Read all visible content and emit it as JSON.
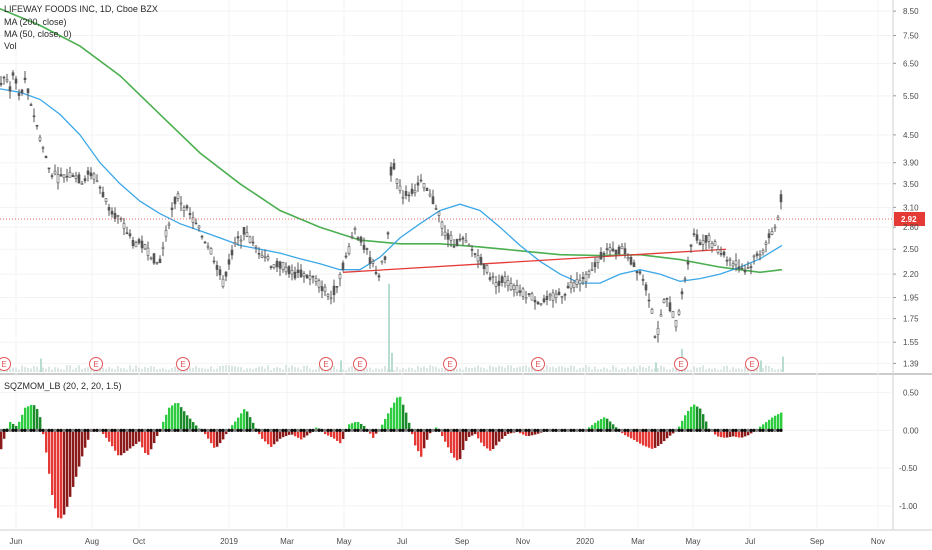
{
  "chart_data": [
    {
      "type": "candlestick",
      "legend": {
        "title": "LIFEWAY FOODS INC, 1D, Cboe BZX",
        "ma200": "MA (200, close)",
        "ma50": "MA (50, close, 0)",
        "vol": "Vol"
      },
      "x_ticks": [
        "Jun",
        "Aug",
        "Oct",
        "2019",
        "Mar",
        "May",
        "Jul",
        "Sep",
        "Nov",
        "2020",
        "Mar",
        "May",
        "Jul",
        "Sep",
        "Nov"
      ],
      "y_ticks": [
        "8.50",
        "7.50",
        "6.50",
        "5.50",
        "4.50",
        "3.90",
        "3.50",
        "3.10",
        "2.80",
        "2.50",
        "2.20",
        "1.95",
        "1.75",
        "1.55",
        "1.39"
      ],
      "ylim": [
        1.33,
        9.0
      ],
      "y_scale": "log",
      "last_price": "2.92",
      "price_path": [
        [
          0,
          5.8
        ],
        [
          4,
          6.2
        ],
        [
          8,
          5.6
        ],
        [
          13,
          6.3
        ],
        [
          18,
          5.5
        ],
        [
          24,
          5.9
        ],
        [
          30,
          5.3
        ],
        [
          36,
          4.7
        ],
        [
          42,
          4.2
        ],
        [
          48,
          3.8
        ],
        [
          56,
          3.6
        ],
        [
          64,
          3.65
        ],
        [
          72,
          3.7
        ],
        [
          80,
          3.55
        ],
        [
          88,
          3.7
        ],
        [
          95,
          3.6
        ],
        [
          105,
          3.2
        ],
        [
          114,
          3.0
        ],
        [
          123,
          2.8
        ],
        [
          132,
          2.6
        ],
        [
          141,
          2.55
        ],
        [
          150,
          2.45
        ],
        [
          157,
          2.3
        ],
        [
          162,
          2.5
        ],
        [
          168,
          2.9
        ],
        [
          176,
          3.3
        ],
        [
          184,
          3.1
        ],
        [
          192,
          2.9
        ],
        [
          200,
          2.7
        ],
        [
          208,
          2.55
        ],
        [
          216,
          2.3
        ],
        [
          222,
          2.1
        ],
        [
          228,
          2.35
        ],
        [
          236,
          2.6
        ],
        [
          244,
          2.75
        ],
        [
          252,
          2.55
        ],
        [
          262,
          2.45
        ],
        [
          272,
          2.3
        ],
        [
          282,
          2.3
        ],
        [
          292,
          2.2
        ],
        [
          302,
          2.2
        ],
        [
          312,
          2.15
        ],
        [
          322,
          2.05
        ],
        [
          330,
          1.95
        ],
        [
          336,
          2.1
        ],
        [
          342,
          2.3
        ],
        [
          348,
          2.5
        ],
        [
          354,
          2.8
        ],
        [
          360,
          2.6
        ],
        [
          366,
          2.45
        ],
        [
          372,
          2.3
        ],
        [
          378,
          2.2
        ],
        [
          384,
          2.4
        ],
        [
          388,
          2.8
        ],
        [
          391,
          4.2
        ],
        [
          394,
          3.7
        ],
        [
          398,
          3.4
        ],
        [
          404,
          3.3
        ],
        [
          412,
          3.4
        ],
        [
          420,
          3.5
        ],
        [
          428,
          3.3
        ],
        [
          436,
          3.1
        ],
        [
          444,
          2.7
        ],
        [
          452,
          2.6
        ],
        [
          462,
          2.6
        ],
        [
          470,
          2.5
        ],
        [
          478,
          2.4
        ],
        [
          486,
          2.25
        ],
        [
          494,
          2.1
        ],
        [
          502,
          2.15
        ],
        [
          512,
          2.05
        ],
        [
          522,
          2.0
        ],
        [
          532,
          1.95
        ],
        [
          542,
          1.9
        ],
        [
          552,
          1.95
        ],
        [
          562,
          2.0
        ],
        [
          572,
          2.1
        ],
        [
          582,
          2.15
        ],
        [
          590,
          2.2
        ],
        [
          598,
          2.4
        ],
        [
          604,
          2.5
        ],
        [
          612,
          2.45
        ],
        [
          620,
          2.5
        ],
        [
          626,
          2.45
        ],
        [
          632,
          2.3
        ],
        [
          638,
          2.25
        ],
        [
          644,
          2.1
        ],
        [
          650,
          1.9
        ],
        [
          655,
          1.55
        ],
        [
          660,
          1.75
        ],
        [
          664,
          1.95
        ],
        [
          670,
          1.85
        ],
        [
          675,
          1.7
        ],
        [
          680,
          1.9
        ],
        [
          686,
          2.3
        ],
        [
          692,
          2.7
        ],
        [
          698,
          2.6
        ],
        [
          706,
          2.65
        ],
        [
          714,
          2.55
        ],
        [
          722,
          2.45
        ],
        [
          730,
          2.35
        ],
        [
          738,
          2.3
        ],
        [
          746,
          2.25
        ],
        [
          754,
          2.4
        ],
        [
          762,
          2.5
        ],
        [
          770,
          2.7
        ],
        [
          776,
          2.85
        ],
        [
          782,
          3.45
        ]
      ],
      "ma50_path": [
        [
          0,
          5.7
        ],
        [
          20,
          5.6
        ],
        [
          40,
          5.4
        ],
        [
          60,
          5.0
        ],
        [
          80,
          4.5
        ],
        [
          100,
          3.9
        ],
        [
          120,
          3.5
        ],
        [
          140,
          3.2
        ],
        [
          160,
          3.0
        ],
        [
          180,
          2.85
        ],
        [
          200,
          2.75
        ],
        [
          220,
          2.65
        ],
        [
          240,
          2.55
        ],
        [
          260,
          2.5
        ],
        [
          280,
          2.45
        ],
        [
          300,
          2.38
        ],
        [
          320,
          2.32
        ],
        [
          340,
          2.25
        ],
        [
          360,
          2.25
        ],
        [
          380,
          2.4
        ],
        [
          400,
          2.65
        ],
        [
          420,
          2.85
        ],
        [
          440,
          3.05
        ],
        [
          460,
          3.15
        ],
        [
          480,
          3.05
        ],
        [
          500,
          2.8
        ],
        [
          520,
          2.55
        ],
        [
          540,
          2.35
        ],
        [
          560,
          2.2
        ],
        [
          580,
          2.1
        ],
        [
          600,
          2.1
        ],
        [
          620,
          2.2
        ],
        [
          640,
          2.25
        ],
        [
          660,
          2.2
        ],
        [
          680,
          2.12
        ],
        [
          700,
          2.15
        ],
        [
          720,
          2.2
        ],
        [
          740,
          2.28
        ],
        [
          760,
          2.38
        ],
        [
          782,
          2.55
        ]
      ],
      "ma200_path": [
        [
          0,
          8.6
        ],
        [
          40,
          7.9
        ],
        [
          80,
          7.1
        ],
        [
          120,
          6.1
        ],
        [
          160,
          5.0
        ],
        [
          200,
          4.1
        ],
        [
          240,
          3.5
        ],
        [
          280,
          3.05
        ],
        [
          320,
          2.8
        ],
        [
          360,
          2.62
        ],
        [
          400,
          2.57
        ],
        [
          440,
          2.57
        ],
        [
          480,
          2.53
        ],
        [
          520,
          2.48
        ],
        [
          560,
          2.43
        ],
        [
          600,
          2.42
        ],
        [
          640,
          2.43
        ],
        [
          680,
          2.37
        ],
        [
          720,
          2.28
        ],
        [
          760,
          2.22
        ],
        [
          782,
          2.25
        ]
      ],
      "trendline": [
        [
          343,
          2.22
        ],
        [
          726,
          2.5
        ]
      ],
      "earnings_x": [
        4,
        96,
        183,
        326,
        360,
        450,
        538,
        681,
        752
      ],
      "volume_spikes": [
        [
          40,
          0.35
        ],
        [
          340,
          0.3
        ],
        [
          388,
          2.3
        ],
        [
          391,
          0.5
        ],
        [
          655,
          0.25
        ],
        [
          681,
          0.6
        ],
        [
          760,
          0.3
        ],
        [
          782,
          0.4
        ]
      ]
    },
    {
      "type": "bar",
      "title": "SQZMOM_LB (20, 2, 20, 1.5)",
      "y_ticks": [
        "0.50",
        "0.00",
        "-0.50",
        "-1.00"
      ],
      "ylim": [
        -1.32,
        0.72
      ],
      "momentum_path": [
        [
          0,
          -0.25
        ],
        [
          8,
          0.12
        ],
        [
          16,
          0.05
        ],
        [
          24,
          0.3
        ],
        [
          32,
          0.35
        ],
        [
          38,
          0.25
        ],
        [
          44,
          -0.2
        ],
        [
          52,
          -0.95
        ],
        [
          58,
          -1.2
        ],
        [
          64,
          -1.1
        ],
        [
          72,
          -0.75
        ],
        [
          82,
          -0.3
        ],
        [
          90,
          -0.02
        ],
        [
          98,
          0.02
        ],
        [
          108,
          -0.15
        ],
        [
          118,
          -0.35
        ],
        [
          128,
          -0.25
        ],
        [
          138,
          -0.15
        ],
        [
          146,
          -0.35
        ],
        [
          152,
          -0.2
        ],
        [
          160,
          0.05
        ],
        [
          168,
          0.3
        ],
        [
          176,
          0.38
        ],
        [
          186,
          0.2
        ],
        [
          196,
          0.05
        ],
        [
          204,
          -0.05
        ],
        [
          214,
          -0.25
        ],
        [
          222,
          -0.12
        ],
        [
          228,
          0.02
        ],
        [
          236,
          0.15
        ],
        [
          244,
          0.3
        ],
        [
          252,
          0.1
        ],
        [
          260,
          -0.1
        ],
        [
          270,
          -0.22
        ],
        [
          280,
          -0.1
        ],
        [
          290,
          -0.05
        ],
        [
          300,
          -0.12
        ],
        [
          308,
          -0.05
        ],
        [
          316,
          0.05
        ],
        [
          324,
          -0.05
        ],
        [
          332,
          -0.1
        ],
        [
          340,
          -0.18
        ],
        [
          348,
          0.08
        ],
        [
          356,
          0.12
        ],
        [
          364,
          0.05
        ],
        [
          372,
          -0.1
        ],
        [
          380,
          0.05
        ],
        [
          390,
          0.3
        ],
        [
          398,
          0.48
        ],
        [
          406,
          0.2
        ],
        [
          414,
          -0.2
        ],
        [
          420,
          -0.35
        ],
        [
          428,
          -0.05
        ],
        [
          436,
          0.05
        ],
        [
          444,
          -0.15
        ],
        [
          452,
          -0.35
        ],
        [
          458,
          -0.42
        ],
        [
          466,
          -0.1
        ],
        [
          474,
          -0.05
        ],
        [
          482,
          -0.2
        ],
        [
          490,
          -0.28
        ],
        [
          498,
          -0.15
        ],
        [
          506,
          -0.05
        ],
        [
          516,
          -0.02
        ],
        [
          526,
          -0.08
        ],
        [
          536,
          -0.05
        ],
        [
          546,
          0.0
        ],
        [
          556,
          -0.02
        ],
        [
          566,
          0.02
        ],
        [
          576,
          0.0
        ],
        [
          586,
          0.02
        ],
        [
          596,
          0.12
        ],
        [
          604,
          0.18
        ],
        [
          612,
          0.08
        ],
        [
          622,
          -0.05
        ],
        [
          632,
          -0.12
        ],
        [
          642,
          -0.2
        ],
        [
          652,
          -0.25
        ],
        [
          660,
          -0.18
        ],
        [
          668,
          -0.08
        ],
        [
          676,
          0.0
        ],
        [
          684,
          0.2
        ],
        [
          692,
          0.35
        ],
        [
          700,
          0.28
        ],
        [
          708,
          0.02
        ],
        [
          716,
          -0.08
        ],
        [
          724,
          -0.1
        ],
        [
          732,
          -0.08
        ],
        [
          740,
          -0.1
        ],
        [
          748,
          -0.06
        ],
        [
          756,
          0.02
        ],
        [
          764,
          0.1
        ],
        [
          772,
          0.18
        ],
        [
          782,
          0.25
        ]
      ]
    }
  ]
}
